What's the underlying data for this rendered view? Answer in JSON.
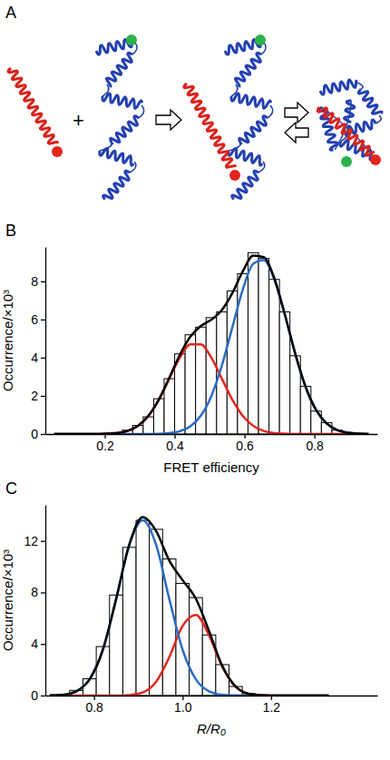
{
  "diagram": {
    "panel": "A",
    "symbol": "+"
  },
  "chart_data": [
    {
      "panel": "B",
      "type": "histogram",
      "x_label": "FRET efficiency",
      "y_label": "Occurrence/×10³",
      "bins": [
        0.04,
        0.07,
        0.1,
        0.13,
        0.16,
        0.19,
        0.22,
        0.25,
        0.28,
        0.31,
        0.34,
        0.37,
        0.4,
        0.43,
        0.46,
        0.49,
        0.52,
        0.55,
        0.58,
        0.61,
        0.64,
        0.67,
        0.7,
        0.73,
        0.76,
        0.79,
        0.82,
        0.85,
        0.88,
        0.91,
        0.94
      ],
      "values": [
        0,
        0,
        0,
        0,
        0.01,
        0.03,
        0.08,
        0.2,
        0.45,
        0.9,
        1.85,
        2.9,
        4.2,
        5.2,
        5.6,
        6.1,
        6.4,
        7.5,
        8.4,
        9.5,
        9.2,
        8.1,
        6.4,
        4.1,
        2.5,
        1.2,
        0.6,
        0.2,
        0.08,
        0.02
      ],
      "color": "#ffffff",
      "xlim": [
        0.03,
        0.98
      ],
      "ylim": [
        0,
        9.8
      ],
      "xticks": [
        0.2,
        0.4,
        0.6,
        0.8
      ],
      "yticks": [
        0,
        2,
        4,
        6,
        8
      ],
      "x": [
        0.055,
        0.085,
        0.115,
        0.145,
        0.175,
        0.205,
        0.235,
        0.265,
        0.295,
        0.325,
        0.355,
        0.385,
        0.415,
        0.445,
        0.475,
        0.505,
        0.535,
        0.565,
        0.595,
        0.625,
        0.655,
        0.685,
        0.715,
        0.745,
        0.775,
        0.805,
        0.835,
        0.865,
        0.895,
        0.925,
        0.955
      ],
      "series": [
        {
          "type": "line",
          "color": "#e3261d",
          "values": [
            0,
            0,
            0,
            0,
            0,
            0.02,
            0.05,
            0.16,
            0.43,
            0.95,
            1.8,
            2.91,
            4.0,
            4.7,
            4.7,
            4.0,
            2.91,
            1.8,
            0.95,
            0.43,
            0.16,
            0.05,
            0.02,
            0,
            0,
            0,
            0,
            0,
            0,
            0,
            0
          ]
        },
        {
          "type": "line",
          "color": "#2b6cc4",
          "values": [
            0,
            0,
            0,
            0,
            0,
            0,
            0,
            0,
            0,
            0,
            0.01,
            0.05,
            0.15,
            0.4,
            0.96,
            1.99,
            3.58,
            5.58,
            7.57,
            8.92,
            9.11,
            8.12,
            6.27,
            4.22,
            2.46,
            1.25,
            0.55,
            0.21,
            0.07,
            0.02,
            0
          ]
        },
        {
          "type": "line",
          "color": "#000000",
          "values": [
            0,
            0,
            0,
            0,
            0,
            0.02,
            0.05,
            0.16,
            0.43,
            0.95,
            1.81,
            2.96,
            4.15,
            5.1,
            5.66,
            5.99,
            6.49,
            7.38,
            8.52,
            9.35,
            9.27,
            8.17,
            6.29,
            4.22,
            2.46,
            1.25,
            0.55,
            0.21,
            0.07,
            0.02,
            0
          ]
        }
      ]
    },
    {
      "panel": "C",
      "type": "histogram",
      "x_label": "R/R₀",
      "y_label": "Occurrence/×10³",
      "bins": [
        0.715,
        0.745,
        0.775,
        0.805,
        0.835,
        0.865,
        0.895,
        0.925,
        0.955,
        0.985,
        1.015,
        1.045,
        1.075,
        1.105,
        1.135,
        1.165,
        1.195,
        1.225
      ],
      "values": [
        0.08,
        0.4,
        1.3,
        3.8,
        7.8,
        11.5,
        13.6,
        12.9,
        10.6,
        8.7,
        7.6,
        4.7,
        2.4,
        0.7,
        0.15,
        0.05,
        0.02
      ],
      "color": "#ffffff",
      "xlim": [
        0.69,
        1.44
      ],
      "ylim": [
        0,
        14.8
      ],
      "xticks": [
        0.8,
        {
          "value": 1,
          "label": "1.0"
        },
        1.2
      ],
      "yticks": [
        0,
        4,
        8,
        12
      ],
      "x": [
        0.7,
        0.73,
        0.76,
        0.79,
        0.82,
        0.85,
        0.88,
        0.91,
        0.94,
        0.97,
        1,
        1.03,
        1.06,
        1.09,
        1.12,
        1.15,
        1.18,
        1.21,
        1.24,
        1.27,
        1.3,
        1.33
      ],
      "series": [
        {
          "type": "line",
          "color": "#e3261d",
          "values": [
            0,
            0,
            0,
            0,
            0,
            0,
            0.04,
            0.24,
            1.06,
            2.98,
            5.4,
            6.26,
            4.66,
            2.22,
            0.68,
            0.13,
            0.02,
            0,
            0,
            0,
            0,
            0
          ]
        },
        {
          "type": "line",
          "color": "#2b6cc4",
          "values": [
            0.01,
            0.06,
            0.33,
            1.26,
            3.56,
            7.5,
            11.72,
            13.6,
            11.72,
            7.5,
            3.56,
            1.26,
            0.33,
            0.06,
            0.01,
            0,
            0,
            0,
            0,
            0,
            0,
            0
          ]
        },
        {
          "type": "line",
          "color": "#000000",
          "values": [
            0.01,
            0.06,
            0.33,
            1.26,
            3.56,
            7.5,
            11.76,
            13.84,
            12.78,
            10.48,
            8.96,
            7.52,
            4.99,
            2.28,
            0.69,
            0.13,
            0.02,
            0,
            0,
            0,
            0,
            0
          ]
        }
      ]
    }
  ]
}
